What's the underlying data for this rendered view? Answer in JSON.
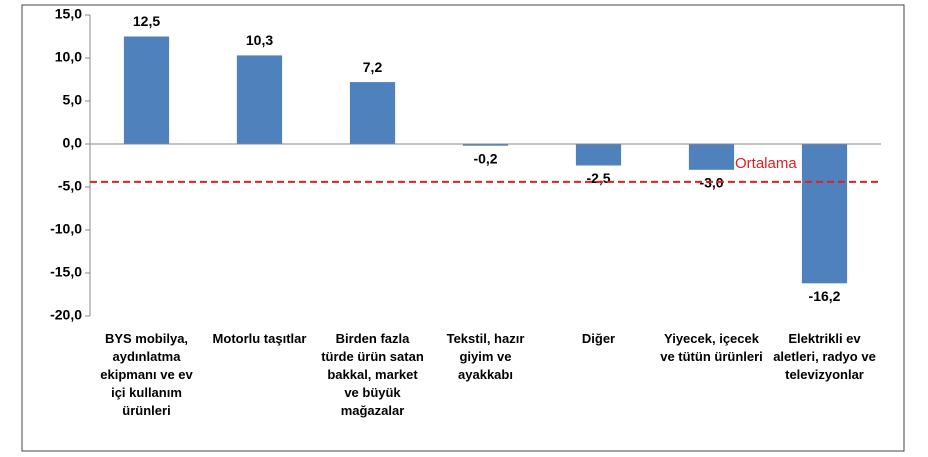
{
  "chart_data": {
    "type": "bar",
    "categories": [
      "BYS mobilya, aydınlatma ekipmanı ve ev içi kullanım ürünleri",
      "Motorlu taşıtlar",
      "Birden fazla türde ürün satan bakkal, market ve büyük mağazalar",
      "Tekstil, hazır giyim ve ayakkabı",
      "Diğer",
      "Yiyecek, içecek ve tütün ürünleri",
      "Elektrikli ev aletleri, radyo ve televizyonlar"
    ],
    "values": [
      12.5,
      10.3,
      7.2,
      -0.2,
      -2.5,
      -3.0,
      -16.2
    ],
    "value_labels": [
      "12,5",
      "10,3",
      "7,2",
      "-0,2",
      "-2,5",
      "-3,0",
      "-16,2"
    ],
    "color": "#4f81bd",
    "ylim": [
      -20,
      15
    ],
    "yticks": [
      {
        "value": -20,
        "label": "-20,0"
      },
      {
        "value": -15,
        "label": "-15,0"
      },
      {
        "value": -10,
        "label": "-10,0"
      },
      {
        "value": -5,
        "label": "-5,0"
      },
      {
        "value": 0,
        "label": "0,0"
      },
      {
        "value": 5,
        "label": "5,0"
      },
      {
        "value": 10,
        "label": "10,0"
      },
      {
        "value": 15,
        "label": "15,0"
      }
    ],
    "reference_line": {
      "value": -4.4,
      "label": "Ortalama",
      "color": "#e02020"
    }
  }
}
